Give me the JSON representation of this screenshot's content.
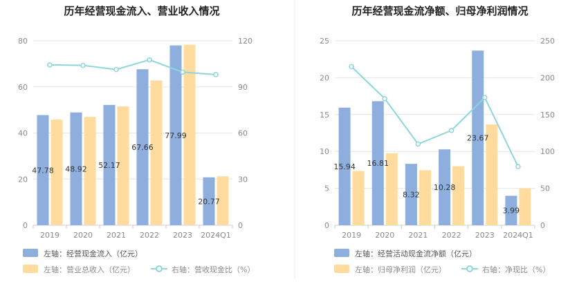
{
  "colors": {
    "bar_primary": "#8eaede",
    "bar_secondary": "#ffdb9e",
    "line": "#8dd6dc",
    "axis_text": "#8a8a8a",
    "grid": "#e6e6e6",
    "title": "#222222",
    "label": "#333333",
    "divider": "#eeeeee"
  },
  "chart_data": [
    {
      "type": "bar",
      "title": "历年经营现金流入、营业收入情况",
      "categories": [
        "2019",
        "2020",
        "2021",
        "2022",
        "2023",
        "2024Q1"
      ],
      "left_axis": {
        "min": 0,
        "max": 80,
        "ticks": [
          "0",
          "20",
          "40",
          "60",
          "80"
        ],
        "tick_values": [
          0,
          20,
          40,
          60,
          80
        ]
      },
      "right_axis": {
        "min": 0,
        "max": 120,
        "ticks": [
          "0",
          "30",
          "60",
          "90",
          "120"
        ],
        "tick_values": [
          0,
          30,
          60,
          90,
          120
        ]
      },
      "series": [
        {
          "name": "经营现金流入",
          "legend": "左轴：经营现金流入（亿元）",
          "type": "bar",
          "axis": "left",
          "values": [
            47.78,
            48.92,
            52.17,
            67.66,
            77.99,
            20.77
          ],
          "labels": [
            "47.78",
            "48.92",
            "52.17",
            "67.66",
            "77.99",
            "20.77"
          ]
        },
        {
          "name": "营业总收入",
          "legend": "左轴：营业总收入（亿元）",
          "type": "bar",
          "axis": "left",
          "values": [
            45.8,
            47.0,
            51.5,
            62.8,
            78.3,
            21.2
          ]
        },
        {
          "name": "营收现金比",
          "legend": "右轴：营收现金比（%）",
          "type": "line",
          "axis": "right",
          "values": [
            104.3,
            104.0,
            101.3,
            107.6,
            99.6,
            98.0
          ]
        }
      ]
    },
    {
      "type": "bar",
      "title": "历年经营现金流净额、归母净利润情况",
      "categories": [
        "2019",
        "2020",
        "2021",
        "2022",
        "2023",
        "2024Q1"
      ],
      "left_axis": {
        "min": 0,
        "max": 25,
        "ticks": [
          "0",
          "5",
          "10",
          "15",
          "20",
          "25"
        ],
        "tick_values": [
          0,
          5,
          10,
          15,
          20,
          25
        ]
      },
      "right_axis": {
        "min": 0,
        "max": 250,
        "ticks": [
          "0",
          "50",
          "100",
          "150",
          "200",
          "250"
        ],
        "tick_values": [
          0,
          50,
          100,
          150,
          200,
          250
        ]
      },
      "series": [
        {
          "name": "经营活动现金流净额",
          "legend": "左轴：经营活动现金流净额（亿元）",
          "type": "bar",
          "axis": "left",
          "values": [
            15.94,
            16.81,
            8.32,
            10.28,
            23.67,
            3.99
          ],
          "labels": [
            "15.94",
            "16.81",
            "8.32",
            "10.28",
            "23.67",
            "3.99"
          ]
        },
        {
          "name": "归母净利润",
          "legend": "左轴：归母净利润（亿元）",
          "type": "bar",
          "axis": "left",
          "values": [
            7.35,
            9.75,
            7.45,
            8.0,
            13.65,
            5.0
          ]
        },
        {
          "name": "净现比",
          "legend": "右轴：净现比（%）",
          "type": "line",
          "axis": "right",
          "values": [
            215.0,
            171.5,
            110.0,
            128.5,
            173.0,
            79.5
          ]
        }
      ]
    }
  ]
}
